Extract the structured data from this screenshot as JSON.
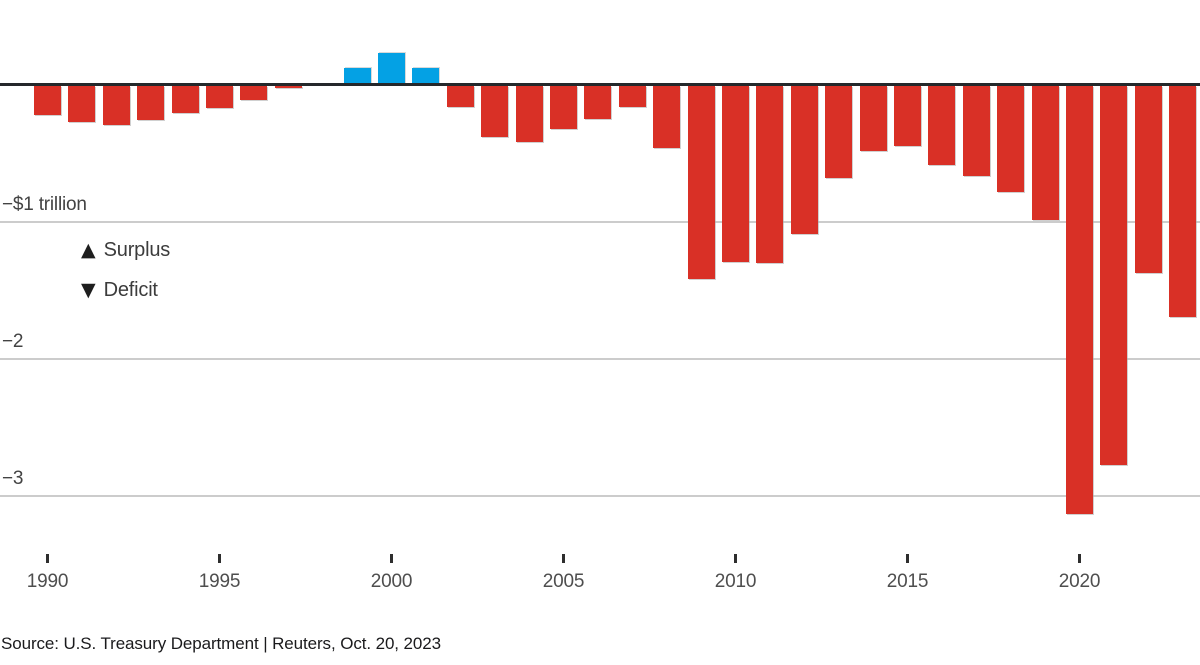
{
  "chart_data": {
    "type": "bar",
    "years": [
      1990,
      1991,
      1992,
      1993,
      1994,
      1995,
      1996,
      1997,
      1998,
      1999,
      2000,
      2001,
      2002,
      2003,
      2004,
      2005,
      2006,
      2007,
      2008,
      2009,
      2010,
      2011,
      2012,
      2013,
      2014,
      2015,
      2016,
      2017,
      2018,
      2019,
      2020,
      2021,
      2022,
      2023
    ],
    "values": [
      -0.221,
      -0.269,
      -0.29,
      -0.255,
      -0.203,
      -0.164,
      -0.107,
      -0.022,
      0,
      0.126,
      0.236,
      0.128,
      -0.158,
      -0.378,
      -0.413,
      -0.318,
      -0.248,
      -0.161,
      -0.459,
      -1.413,
      -1.294,
      -1.3,
      -1.087,
      -0.679,
      -0.485,
      -0.442,
      -0.585,
      -0.665,
      -0.779,
      -0.984,
      -3.132,
      -2.772,
      -1.375,
      -1.695
    ],
    "title": "",
    "xlabel": "",
    "ylabel": "",
    "ylim": [
      -3.35,
      0.4
    ],
    "baseline": 0,
    "grid": true,
    "legend_position": "inside-left",
    "y_axis": [
      {
        "value": -1,
        "label": "−$1 trillion"
      },
      {
        "value": -2,
        "label": "−2"
      },
      {
        "value": -3,
        "label": "−3"
      }
    ],
    "x_ticks": [
      "1990",
      "1995",
      "2000",
      "2005",
      "2010",
      "2015",
      "2020"
    ],
    "legend": [
      {
        "symbol": "▲",
        "label": "Surplus"
      },
      {
        "symbol": "▼",
        "label": "Deficit"
      }
    ],
    "source": "Source: U.S. Treasury Department | Reuters, Oct. 20, 2023",
    "colors": {
      "surplus": "#04a1e4",
      "deficit": "#d93026",
      "baseline": "#25282b",
      "grid": "#cccccc",
      "tick": "#2e2e2e"
    }
  }
}
